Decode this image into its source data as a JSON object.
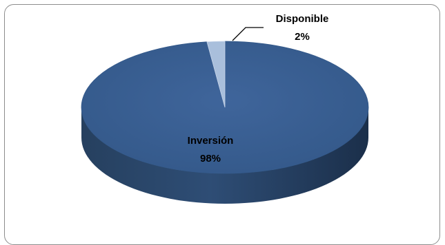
{
  "chart_data": {
    "type": "pie",
    "three_d": true,
    "categories": [
      "Inversión",
      "Disponible"
    ],
    "values": [
      98,
      2
    ],
    "units": "%",
    "labels": [
      {
        "name": "Inversión",
        "percent": "98%"
      },
      {
        "name": "Disponible",
        "percent": "2%"
      }
    ],
    "colors": {
      "Inversión": "#3a5f92",
      "Disponible": "#a9bfdc"
    },
    "legend": "none"
  }
}
